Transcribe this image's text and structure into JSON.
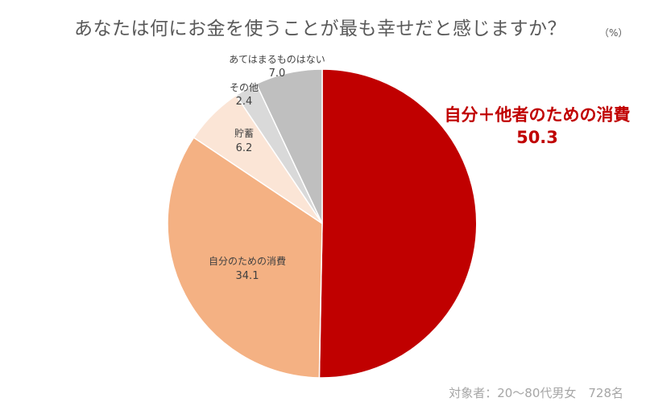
{
  "title": "あなたは何にお金を使うことが最も幸せだと感じますか？",
  "unit": "（%）",
  "note": "対象者：20～80代男女　728名",
  "chart_data": {
    "type": "pie",
    "title": "あなたは何にお金を使うことが最も幸せだと感じますか？",
    "unit": "%",
    "start": "12 o'clock, clockwise",
    "categories": [
      "自分＋他者のための消費",
      "自分のための消費",
      "貯蓄",
      "その他",
      "あてはまるものはない"
    ],
    "values": [
      50.3,
      34.1,
      6.2,
      2.4,
      7.0
    ],
    "colors": [
      "#c00000",
      "#f4b183",
      "#fbe5d6",
      "#d9d9d9",
      "#bfbfbf"
    ],
    "highlight": "自分＋他者のための消費"
  }
}
